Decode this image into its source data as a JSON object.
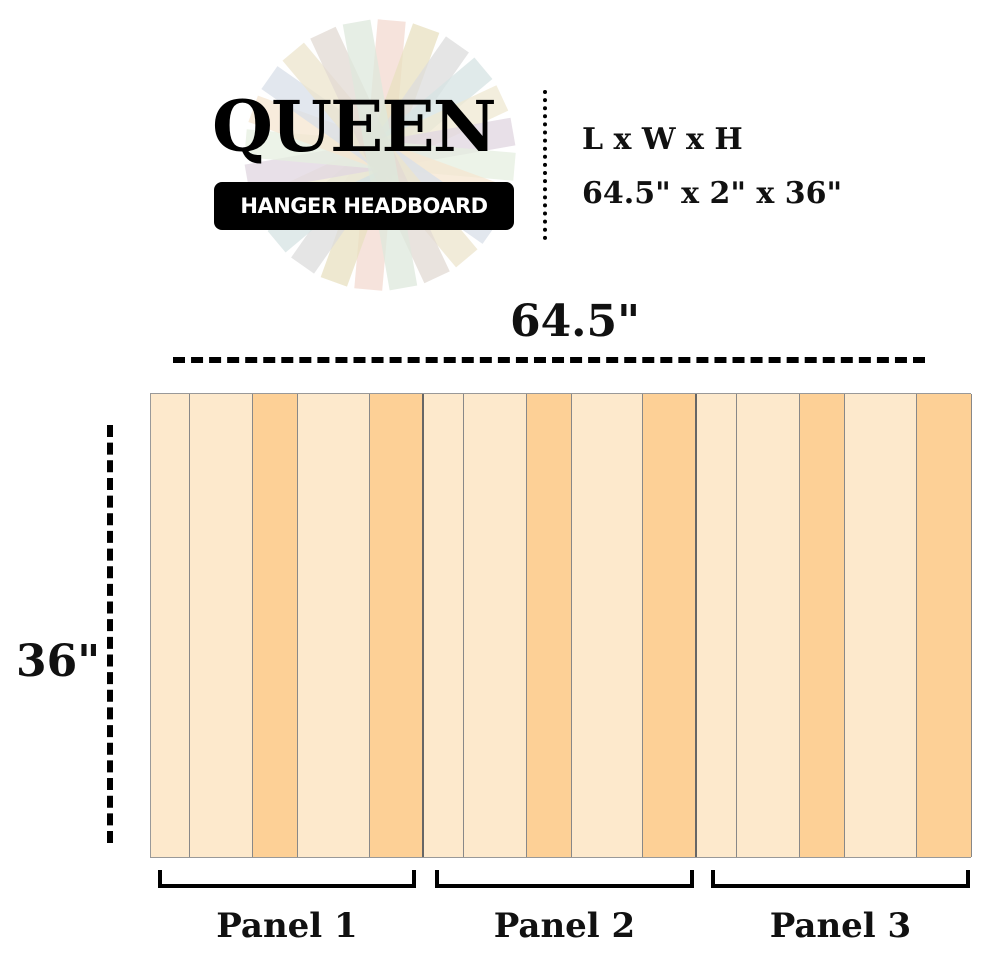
{
  "header": {
    "title": "QUEEN",
    "subtitle": "HANGER HEADBOARD",
    "spec_label": "L x W x H",
    "spec_value": "64.5\" x 2\" x 36\""
  },
  "dimensions": {
    "width_label": "64.5\"",
    "height_label": "36\""
  },
  "colors": {
    "light_plank": "#fde9cc",
    "dark_plank": "#fdd096"
  },
  "panels": [
    {
      "label": "Panel 1",
      "planks": [
        "light",
        "light",
        "dark",
        "light",
        "dark"
      ]
    },
    {
      "label": "Panel 2",
      "planks": [
        "light",
        "light",
        "dark",
        "light",
        "dark"
      ]
    },
    {
      "label": "Panel 3",
      "planks": [
        "light",
        "light",
        "dark",
        "light",
        "dark"
      ]
    }
  ]
}
